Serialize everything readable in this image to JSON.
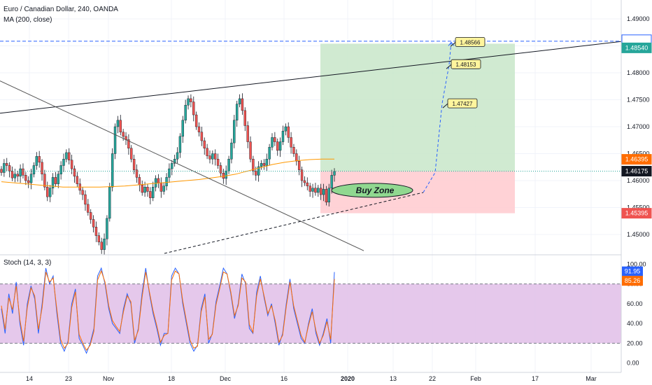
{
  "header": {
    "title": "Euro / Canadian Dollar, 240, OANDA",
    "indicator": "MA (200, close)",
    "stoch_label": "Stoch (14, 3, 3)"
  },
  "colors": {
    "bull": "#26a69a",
    "bear": "#ef5350",
    "ma": "#ff9800",
    "stoch_k": "#2962ff",
    "stoch_d": "#ff6d00",
    "profit_zone": "#c8e6c9",
    "loss_zone": "#ffcdd2",
    "stoch_band": "#e1bee7",
    "target_line": "#2962ff",
    "buy_zone_fill": "#90d890"
  },
  "chart_data": [
    {
      "type": "candlestick",
      "title": "Euro / Canadian Dollar, 240, OANDA",
      "ylim": [
        1.4465,
        1.4935
      ],
      "y_ticks": [
        "1.49000",
        "1.48500",
        "1.48000",
        "1.47500",
        "1.47000",
        "1.46500",
        "1.46000",
        "1.45500",
        "1.45000"
      ],
      "x_ticks": [
        "14",
        "23",
        "Nov",
        "18",
        "Dec",
        "16",
        "2020",
        "13",
        "22",
        "Feb",
        "17",
        "Mar"
      ],
      "price_tags": [
        {
          "value": "1.48586",
          "color": "#2962ff",
          "text_color": "#131722",
          "style": "outline"
        },
        {
          "value": "1.48540",
          "color": "#26a69a"
        },
        {
          "value": "1.46395",
          "color": "#ff6d00"
        },
        {
          "value": "1.46175",
          "color": "#131722"
        },
        {
          "value": "1.45395",
          "color": "#ef5350"
        }
      ],
      "annotations": [
        {
          "text": "1.48566",
          "price": 1.48566
        },
        {
          "text": "1.48153",
          "price": 1.48153
        },
        {
          "text": "1.47427",
          "price": 1.47427
        }
      ],
      "buy_zone_label": "Buy Zone",
      "positions": {
        "entry": 1.46175,
        "target": 1.4854,
        "stop": 1.45395
      },
      "path_points": [
        1.4578,
        1.4615,
        1.4743,
        1.4815,
        1.48566
      ],
      "price_series": [
        1.4615,
        1.4632,
        1.4628,
        1.4618,
        1.4605,
        1.4612,
        1.4608,
        1.4622,
        1.461,
        1.46,
        1.4596,
        1.4612,
        1.4628,
        1.4645,
        1.4634,
        1.4612,
        1.4588,
        1.457,
        1.4586,
        1.4606,
        1.4594,
        1.4612,
        1.4628,
        1.464,
        1.4652,
        1.4638,
        1.4622,
        1.4608,
        1.4594,
        1.4582,
        1.4574,
        1.4556,
        1.4541,
        1.4528,
        1.4514,
        1.4498,
        1.4486,
        1.4472,
        1.4492,
        1.453,
        1.4588,
        1.465,
        1.47,
        1.4712,
        1.469,
        1.4682,
        1.4676,
        1.466,
        1.464,
        1.462,
        1.4606,
        1.4592,
        1.4578,
        1.4588,
        1.458,
        1.4568,
        1.4588,
        1.4604,
        1.4596,
        1.458,
        1.459,
        1.4606,
        1.4622,
        1.4632,
        1.464,
        1.4652,
        1.4682,
        1.4712,
        1.474,
        1.4752,
        1.4746,
        1.4722,
        1.47,
        1.469,
        1.4674,
        1.466,
        1.4646,
        1.464,
        1.465,
        1.464,
        1.4628,
        1.4614,
        1.4604,
        1.4618,
        1.464,
        1.467,
        1.4712,
        1.4742,
        1.4752,
        1.473,
        1.4702,
        1.4672,
        1.464,
        1.4618,
        1.461,
        1.4626,
        1.4632,
        1.4628,
        1.464,
        1.4662,
        1.468,
        1.4672,
        1.4656,
        1.4672,
        1.4692,
        1.47,
        1.468,
        1.4662,
        1.465,
        1.4636,
        1.462,
        1.46,
        1.4596,
        1.459,
        1.458,
        1.4586,
        1.4578,
        1.4586,
        1.4574,
        1.4584,
        1.456,
        1.4586,
        1.461,
        1.4617
      ],
      "ma_series": [
        1.4598,
        1.4596,
        1.4594,
        1.4592,
        1.459,
        1.4588,
        1.4588,
        1.4588,
        1.4588,
        1.4589,
        1.459,
        1.4592,
        1.4594,
        1.4596,
        1.4598,
        1.46,
        1.4602,
        1.4605,
        1.4608,
        1.4612,
        1.4618,
        1.4624,
        1.463,
        1.4634,
        1.4637,
        1.4639,
        1.464,
        1.464
      ]
    },
    {
      "type": "line",
      "title": "Stoch (14, 3, 3)",
      "ylim": [
        -8,
        108
      ],
      "y_ticks": [
        "100.00",
        "80.00",
        "60.00",
        "40.00",
        "20.00",
        "0.00"
      ],
      "band": [
        20,
        80
      ],
      "current": [
        "91.95",
        "85.26"
      ],
      "series": [
        {
          "values": [
            55,
            30,
            70,
            50,
            82,
            40,
            18,
            60,
            78,
            65,
            30,
            60,
            96,
            80,
            88,
            50,
            20,
            12,
            22,
            60,
            75,
            25,
            18,
            10,
            20,
            35,
            88,
            96,
            80,
            55,
            40,
            35,
            30,
            55,
            70,
            60,
            20,
            35,
            70,
            96,
            70,
            50,
            35,
            18,
            30,
            30,
            88,
            96,
            90,
            60,
            40,
            20,
            12,
            18,
            55,
            70,
            20,
            30,
            62,
            78,
            96,
            90,
            70,
            45,
            60,
            90,
            80,
            35,
            30,
            72,
            88,
            66,
            48,
            60,
            40,
            18,
            30,
            60,
            85,
            55,
            40,
            25,
            20,
            40,
            55,
            30,
            18,
            30,
            45,
            20,
            92
          ]
        },
        {
          "values": [
            58,
            34,
            66,
            54,
            78,
            44,
            22,
            56,
            76,
            68,
            34,
            56,
            92,
            82,
            86,
            54,
            24,
            15,
            20,
            56,
            72,
            29,
            20,
            13,
            18,
            32,
            84,
            93,
            82,
            58,
            43,
            37,
            32,
            52,
            68,
            62,
            23,
            33,
            66,
            92,
            72,
            53,
            38,
            21,
            28,
            30,
            84,
            93,
            90,
            63,
            43,
            23,
            15,
            17,
            52,
            67,
            24,
            29,
            59,
            75,
            92,
            90,
            72,
            48,
            58,
            86,
            82,
            39,
            31,
            68,
            85,
            68,
            50,
            58,
            43,
            21,
            28,
            57,
            82,
            58,
            43,
            28,
            21,
            38,
            52,
            33,
            20,
            28,
            42,
            24,
            85
          ]
        }
      ]
    }
  ]
}
